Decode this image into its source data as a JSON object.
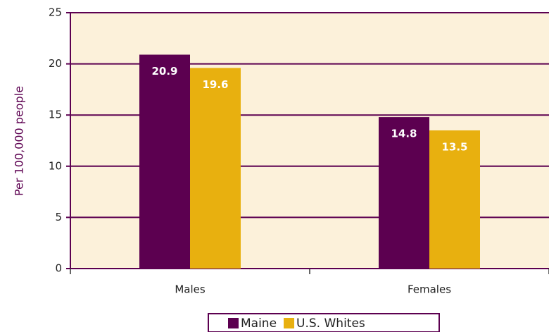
{
  "chart_data": {
    "type": "bar",
    "y_axis_label": "Per 100,000 people",
    "categories": [
      "Males",
      "Females"
    ],
    "series": [
      {
        "name": "Maine",
        "color": "#5c0050",
        "values": [
          20.9,
          14.8
        ]
      },
      {
        "name": "U.S. Whites",
        "color": "#e8b00f",
        "values": [
          19.6,
          13.5
        ]
      }
    ],
    "ylim": [
      0,
      25
    ],
    "yticks": [
      0,
      5,
      10,
      15,
      20,
      25
    ],
    "grid": true,
    "legend": "bottom"
  }
}
